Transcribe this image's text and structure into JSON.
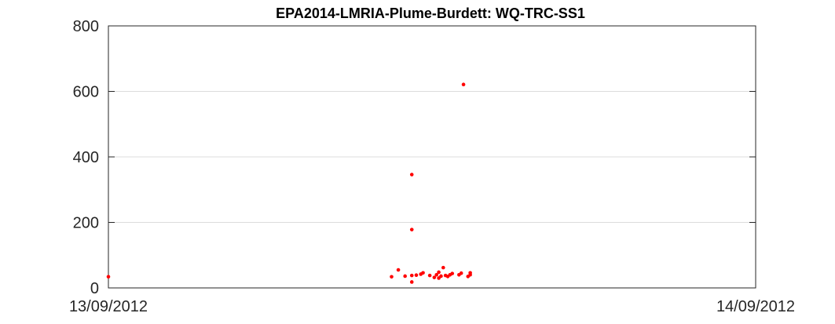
{
  "chart_data": {
    "type": "scatter",
    "title": "EPA2014-LMRIA-Plume-Burdett: WQ-TRC-SS1",
    "xlabel": "",
    "ylabel": "",
    "x_ticks": [
      "13/09/2012",
      "14/09/2012"
    ],
    "x_range": [
      "13/09/2012 00:00",
      "14/09/2012 00:00"
    ],
    "y_ticks": [
      "0",
      "200",
      "400",
      "600",
      "800"
    ],
    "ylim": [
      0,
      800
    ],
    "grid": "horizontal",
    "series": [
      {
        "color": "#ff0000",
        "points": [
          {
            "x": "13/09/2012 00:00",
            "y": 34
          },
          {
            "x": "13/09/2012 10:30",
            "y": 34
          },
          {
            "x": "13/09/2012 10:45",
            "y": 55
          },
          {
            "x": "13/09/2012 11:00",
            "y": 36
          },
          {
            "x": "13/09/2012 11:15",
            "y": 38
          },
          {
            "x": "13/09/2012 11:15",
            "y": 18
          },
          {
            "x": "13/09/2012 11:15",
            "y": 178
          },
          {
            "x": "13/09/2012 11:15",
            "y": 346
          },
          {
            "x": "13/09/2012 11:25",
            "y": 39
          },
          {
            "x": "13/09/2012 11:35",
            "y": 42
          },
          {
            "x": "13/09/2012 11:40",
            "y": 46
          },
          {
            "x": "13/09/2012 11:55",
            "y": 38
          },
          {
            "x": "13/09/2012 12:05",
            "y": 32
          },
          {
            "x": "13/09/2012 12:10",
            "y": 40
          },
          {
            "x": "13/09/2012 12:15",
            "y": 48
          },
          {
            "x": "13/09/2012 12:15",
            "y": 30
          },
          {
            "x": "13/09/2012 12:20",
            "y": 36
          },
          {
            "x": "13/09/2012 12:25",
            "y": 62
          },
          {
            "x": "13/09/2012 12:30",
            "y": 38
          },
          {
            "x": "13/09/2012 12:35",
            "y": 35
          },
          {
            "x": "13/09/2012 12:40",
            "y": 40
          },
          {
            "x": "13/09/2012 12:45",
            "y": 44
          },
          {
            "x": "13/09/2012 13:00",
            "y": 40
          },
          {
            "x": "13/09/2012 13:05",
            "y": 45
          },
          {
            "x": "13/09/2012 13:10",
            "y": 621
          },
          {
            "x": "13/09/2012 13:20",
            "y": 35
          },
          {
            "x": "13/09/2012 13:25",
            "y": 40
          },
          {
            "x": "13/09/2012 13:25",
            "y": 46
          }
        ]
      }
    ]
  }
}
